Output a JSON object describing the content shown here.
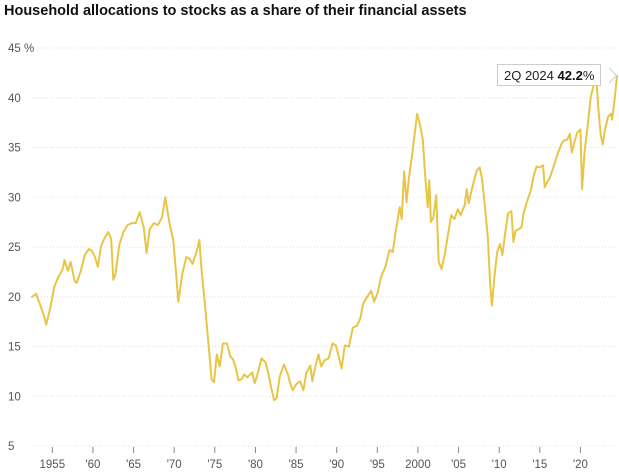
{
  "title": "Household allocations to stocks as a share of their financial assets",
  "callout": {
    "period": "2Q 2024",
    "value": "42.2",
    "unit": "%"
  },
  "colors": {
    "line": "#e8c547",
    "grid": "#dddddd",
    "axis": "#555555"
  },
  "chart_data": {
    "type": "line",
    "title": "Household allocations to stocks as a share of their financial assets",
    "xlabel": "",
    "ylabel": "",
    "xlim": [
      1952.5,
      2024.5
    ],
    "ylim": [
      5,
      45
    ],
    "y_ticks": [
      5,
      10,
      15,
      20,
      25,
      30,
      35,
      40,
      45
    ],
    "y_tick_labels": [
      "5",
      "10",
      "15",
      "20",
      "25",
      "30",
      "35",
      "40",
      "45 %"
    ],
    "x_ticks": [
      1955,
      1960,
      1965,
      1970,
      1975,
      1980,
      1985,
      1990,
      1995,
      2000,
      2005,
      2010,
      2015,
      2020
    ],
    "x_tick_labels": [
      "1955",
      "'60",
      "'65",
      "'70",
      "'75",
      "'80",
      "'85",
      "'90",
      "'95",
      "2000",
      "'05",
      "'10",
      "'15",
      "'20"
    ],
    "grid": true,
    "series": [
      {
        "values": [
          [
            1952.5,
            20.0
          ],
          [
            1953.0,
            20.3
          ],
          [
            1953.5,
            19.2
          ],
          [
            1954.0,
            18.0
          ],
          [
            1954.25,
            17.2
          ],
          [
            1954.75,
            18.9
          ],
          [
            1955.25,
            21.0
          ],
          [
            1955.75,
            22.0
          ],
          [
            1956.25,
            22.7
          ],
          [
            1956.5,
            23.7
          ],
          [
            1956.9,
            22.6
          ],
          [
            1957.25,
            23.5
          ],
          [
            1957.75,
            21.6
          ],
          [
            1958.0,
            21.4
          ],
          [
            1958.5,
            22.6
          ],
          [
            1959.0,
            24.2
          ],
          [
            1959.5,
            24.8
          ],
          [
            1959.9,
            24.6
          ],
          [
            1960.25,
            24.0
          ],
          [
            1960.6,
            23.0
          ],
          [
            1961.0,
            25.1
          ],
          [
            1961.5,
            26.0
          ],
          [
            1961.9,
            26.5
          ],
          [
            1962.25,
            25.8
          ],
          [
            1962.5,
            21.7
          ],
          [
            1962.75,
            22.2
          ],
          [
            1963.25,
            25.2
          ],
          [
            1963.75,
            26.5
          ],
          [
            1964.25,
            27.2
          ],
          [
            1964.75,
            27.4
          ],
          [
            1965.25,
            27.4
          ],
          [
            1965.75,
            28.5
          ],
          [
            1966.25,
            27.0
          ],
          [
            1966.6,
            24.4
          ],
          [
            1967.0,
            26.8
          ],
          [
            1967.5,
            27.4
          ],
          [
            1968.0,
            27.2
          ],
          [
            1968.5,
            28.0
          ],
          [
            1968.9,
            30.0
          ],
          [
            1969.4,
            27.5
          ],
          [
            1969.9,
            25.6
          ],
          [
            1970.25,
            22.2
          ],
          [
            1970.5,
            19.5
          ],
          [
            1971.0,
            22.3
          ],
          [
            1971.5,
            24.0
          ],
          [
            1971.9,
            23.8
          ],
          [
            1972.25,
            23.3
          ],
          [
            1972.75,
            24.5
          ],
          [
            1973.1,
            25.7
          ],
          [
            1973.4,
            22.4
          ],
          [
            1973.75,
            19.5
          ],
          [
            1974.25,
            15.0
          ],
          [
            1974.6,
            11.7
          ],
          [
            1974.9,
            11.4
          ],
          [
            1975.25,
            14.2
          ],
          [
            1975.6,
            13.0
          ],
          [
            1976.0,
            15.3
          ],
          [
            1976.5,
            15.3
          ],
          [
            1976.9,
            14.0
          ],
          [
            1977.25,
            13.7
          ],
          [
            1977.6,
            12.8
          ],
          [
            1977.9,
            11.6
          ],
          [
            1978.3,
            11.7
          ],
          [
            1978.6,
            12.2
          ],
          [
            1979.0,
            11.9
          ],
          [
            1979.6,
            12.4
          ],
          [
            1979.9,
            11.3
          ],
          [
            1980.25,
            12.2
          ],
          [
            1980.75,
            13.8
          ],
          [
            1981.25,
            13.4
          ],
          [
            1981.6,
            12.3
          ],
          [
            1981.9,
            11.0
          ],
          [
            1982.3,
            9.6
          ],
          [
            1982.6,
            9.8
          ],
          [
            1983.0,
            12.0
          ],
          [
            1983.5,
            13.2
          ],
          [
            1984.0,
            12.2
          ],
          [
            1984.3,
            11.2
          ],
          [
            1984.6,
            10.6
          ],
          [
            1985.0,
            11.2
          ],
          [
            1985.5,
            11.5
          ],
          [
            1985.9,
            10.6
          ],
          [
            1986.25,
            12.3
          ],
          [
            1986.75,
            13.1
          ],
          [
            1987.0,
            11.5
          ],
          [
            1987.4,
            13.1
          ],
          [
            1987.75,
            14.2
          ],
          [
            1988.1,
            13.0
          ],
          [
            1988.5,
            13.6
          ],
          [
            1989.0,
            13.8
          ],
          [
            1989.5,
            15.3
          ],
          [
            1989.9,
            15.1
          ],
          [
            1990.25,
            14.0
          ],
          [
            1990.6,
            12.8
          ],
          [
            1991.0,
            15.1
          ],
          [
            1991.5,
            15.0
          ],
          [
            1992.0,
            16.9
          ],
          [
            1992.5,
            17.1
          ],
          [
            1992.9,
            17.8
          ],
          [
            1993.25,
            19.3
          ],
          [
            1993.75,
            20.0
          ],
          [
            1994.25,
            20.6
          ],
          [
            1994.6,
            19.5
          ],
          [
            1995.0,
            20.3
          ],
          [
            1995.5,
            22.1
          ],
          [
            1996.0,
            23.0
          ],
          [
            1996.5,
            24.7
          ],
          [
            1996.9,
            24.5
          ],
          [
            1997.25,
            26.5
          ],
          [
            1997.75,
            29.0
          ],
          [
            1998.0,
            27.8
          ],
          [
            1998.3,
            32.6
          ],
          [
            1998.6,
            29.5
          ],
          [
            1998.9,
            32.0
          ],
          [
            1999.25,
            34.0
          ],
          [
            1999.6,
            36.4
          ],
          [
            1999.9,
            38.4
          ],
          [
            2000.25,
            37.3
          ],
          [
            2000.6,
            35.8
          ],
          [
            2000.9,
            32.0
          ],
          [
            2001.2,
            29.0
          ],
          [
            2001.4,
            31.7
          ],
          [
            2001.6,
            27.5
          ],
          [
            2001.9,
            28.0
          ],
          [
            2002.25,
            30.2
          ],
          [
            2002.55,
            23.5
          ],
          [
            2002.9,
            22.8
          ],
          [
            2003.25,
            24.0
          ],
          [
            2003.75,
            26.5
          ],
          [
            2004.1,
            28.2
          ],
          [
            2004.5,
            27.8
          ],
          [
            2004.9,
            28.8
          ],
          [
            2005.25,
            28.2
          ],
          [
            2005.75,
            29.2
          ],
          [
            2006.0,
            30.8
          ],
          [
            2006.25,
            29.4
          ],
          [
            2006.75,
            31.2
          ],
          [
            2007.25,
            32.7
          ],
          [
            2007.6,
            33.0
          ],
          [
            2007.9,
            31.8
          ],
          [
            2008.25,
            29.0
          ],
          [
            2008.6,
            26.0
          ],
          [
            2008.9,
            21.0
          ],
          [
            2009.1,
            19.1
          ],
          [
            2009.4,
            21.9
          ],
          [
            2009.75,
            24.5
          ],
          [
            2010.1,
            25.3
          ],
          [
            2010.4,
            24.2
          ],
          [
            2010.75,
            26.5
          ],
          [
            2011.1,
            28.4
          ],
          [
            2011.5,
            28.6
          ],
          [
            2011.75,
            25.5
          ],
          [
            2012.0,
            26.6
          ],
          [
            2012.4,
            26.8
          ],
          [
            2012.75,
            27.0
          ],
          [
            2013.0,
            28.4
          ],
          [
            2013.4,
            29.5
          ],
          [
            2013.9,
            30.7
          ],
          [
            2014.25,
            32.2
          ],
          [
            2014.6,
            33.1
          ],
          [
            2015.0,
            33.0
          ],
          [
            2015.4,
            33.2
          ],
          [
            2015.6,
            31.0
          ],
          [
            2015.9,
            31.5
          ],
          [
            2016.25,
            32.0
          ],
          [
            2016.75,
            33.2
          ],
          [
            2017.25,
            34.5
          ],
          [
            2017.75,
            35.5
          ],
          [
            2018.0,
            35.7
          ],
          [
            2018.4,
            35.8
          ],
          [
            2018.7,
            36.4
          ],
          [
            2018.95,
            34.5
          ],
          [
            2019.25,
            35.5
          ],
          [
            2019.6,
            36.5
          ],
          [
            2020.0,
            36.8
          ],
          [
            2020.2,
            30.8
          ],
          [
            2020.5,
            34.5
          ],
          [
            2020.9,
            37.3
          ],
          [
            2021.25,
            40.0
          ],
          [
            2021.6,
            41.2
          ],
          [
            2021.95,
            42.0
          ],
          [
            2022.25,
            38.5
          ],
          [
            2022.5,
            36.2
          ],
          [
            2022.75,
            35.3
          ],
          [
            2023.0,
            36.7
          ],
          [
            2023.4,
            38.1
          ],
          [
            2023.75,
            38.4
          ],
          [
            2023.9,
            37.8
          ],
          [
            2024.25,
            40.2
          ],
          [
            2024.5,
            42.2
          ]
        ]
      }
    ]
  }
}
